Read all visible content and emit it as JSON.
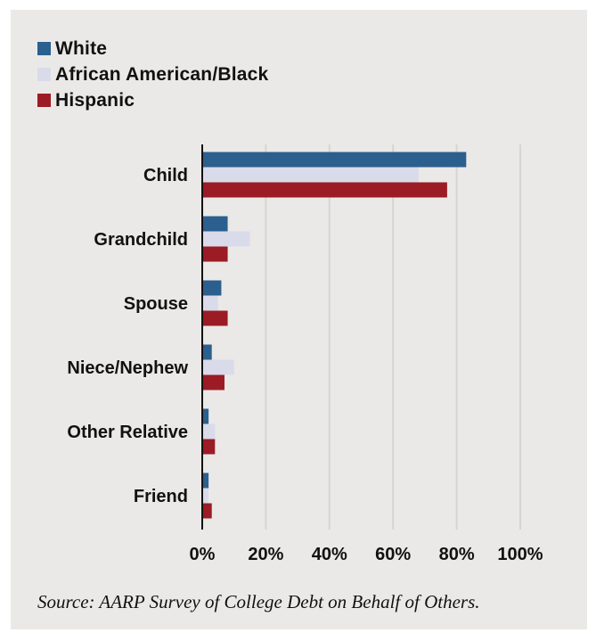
{
  "chart_data": {
    "type": "bar",
    "orientation": "horizontal",
    "categories": [
      "Child",
      "Grandchild",
      "Spouse",
      "Niece/Nephew",
      "Other Relative",
      "Friend"
    ],
    "series": [
      {
        "name": "White",
        "color": "#2b5f8e",
        "values": [
          83,
          8,
          6,
          3,
          2,
          2
        ]
      },
      {
        "name": "African American/Black",
        "color": "#d9dbea",
        "values": [
          68,
          15,
          5,
          10,
          4,
          2
        ]
      },
      {
        "name": "Hispanic",
        "color": "#9b1c24",
        "values": [
          77,
          8,
          8,
          7,
          4,
          3
        ]
      }
    ],
    "x_ticks": [
      "0%",
      "20%",
      "40%",
      "60%",
      "80%",
      "100%"
    ],
    "xlim": [
      0,
      100
    ],
    "grid": true,
    "legend_position": "top-left"
  },
  "source": "Source: AARP Survey of College Debt on Behalf of Others."
}
